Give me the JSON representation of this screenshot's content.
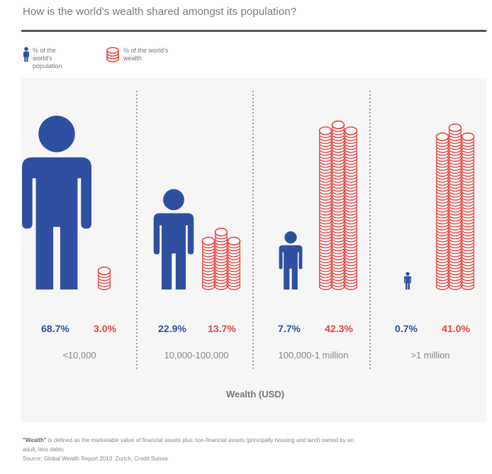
{
  "title": "How is the world's wealth shared amongst its population?",
  "legend": {
    "population_label": "% of the world's population",
    "wealth_label": "% of the world's wealth"
  },
  "colors": {
    "population": "#2f4fa0",
    "wealth": "#e8433f",
    "divider": "#666666"
  },
  "chart_data": {
    "type": "bar",
    "categories": [
      "<10,000",
      "10,000-100,000",
      "100,000-1 million",
      ">1 million"
    ],
    "series": [
      {
        "name": "% of the world's population",
        "values": [
          68.7,
          22.9,
          7.7,
          0.7
        ]
      },
      {
        "name": "% of the world's wealth",
        "values": [
          3.0,
          13.7,
          42.3,
          41.0
        ]
      }
    ],
    "value_labels": {
      "population": [
        "68.7%",
        "22.9%",
        "7.7%",
        "0.7%"
      ],
      "wealth": [
        "3.0%",
        "13.7%",
        "42.3%",
        "41.0%"
      ]
    },
    "xlabel": "Wealth (USD)",
    "ylabel": ""
  },
  "footnote": {
    "term": "\"Wealth\"",
    "definition": " is defined as the marketable value of financial assets plus non-financial assets (principally housing and land) owned by an adult, less debts",
    "source": "Source: Global Wealth Report 2013. Zurich, Credit Suisse"
  }
}
